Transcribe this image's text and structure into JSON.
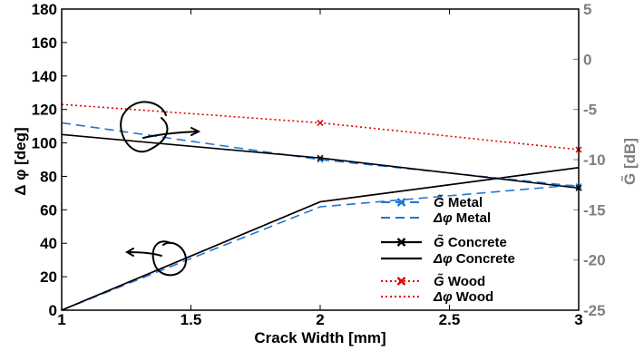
{
  "chart_data": {
    "type": "line",
    "xlabel": "Crack Width [mm]",
    "ylabel": "Δ φ [deg]",
    "y2label": "G̃ [dB]",
    "xlim": [
      1,
      3
    ],
    "ylim": [
      0,
      180
    ],
    "y2lim": [
      -25,
      5
    ],
    "x_ticks": [
      "1",
      "1.5",
      "2",
      "2.5",
      "3"
    ],
    "y_ticks": [
      "0",
      "20",
      "40",
      "60",
      "80",
      "100",
      "120",
      "140",
      "160",
      "180"
    ],
    "y2_ticks": [
      "-25",
      "-20",
      "-15",
      "-10",
      "-5",
      "0",
      "5"
    ],
    "grid": false,
    "legend_position": "lower-right",
    "x": [
      1,
      2,
      3
    ],
    "series": [
      {
        "name": "G̃ Metal",
        "label_sym": "G̃",
        "label_text": " Metal",
        "axis": "right",
        "values": [
          -25,
          -14.7,
          -12.5
        ],
        "color": "#1f77d4",
        "dash": "10,6",
        "marker": "x"
      },
      {
        "name": "Δφ Metal",
        "label_sym": "Δφ",
        "label_text": " Metal",
        "axis": "left",
        "values": [
          112,
          90,
          74
        ],
        "color": "#1f77d4",
        "dash": "10,6",
        "marker": "x"
      },
      {
        "name": "G̃ Concrete",
        "label_sym": "G̃",
        "label_text": " Concrete",
        "axis": "right",
        "values": [
          -25,
          -14.2,
          -10.8
        ],
        "color": "#000000",
        "dash": "",
        "marker": "x"
      },
      {
        "name": "Δφ Concrete",
        "label_sym": "Δφ",
        "label_text": " Concrete",
        "axis": "left",
        "values": [
          105,
          91,
          73
        ],
        "color": "#000000",
        "dash": "",
        "marker": "x"
      },
      {
        "name": "G̃ Wood",
        "label_sym": "G̃",
        "label_text": " Wood",
        "axis": "right",
        "values": [
          -25,
          -14.2,
          -10.8
        ],
        "color": "#e00000",
        "dash": "2,3",
        "marker": "x"
      },
      {
        "name": "Δφ Wood",
        "label_sym": "Δφ",
        "label_text": " Wood",
        "axis": "left",
        "values": [
          123,
          112,
          96
        ],
        "color": "#e00000",
        "dash": "2,3",
        "marker": "x"
      }
    ],
    "colors": {
      "metal": "#1f77d4",
      "concrete": "#000000",
      "wood": "#e00000",
      "right_axis": "#7f7f7f"
    }
  }
}
